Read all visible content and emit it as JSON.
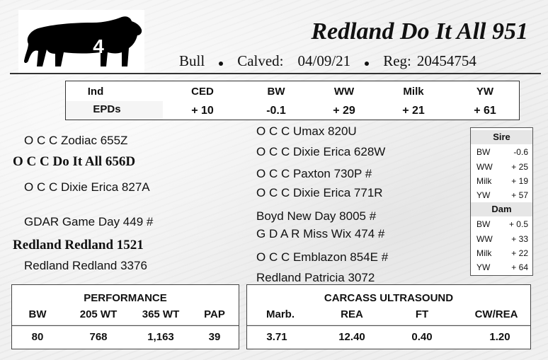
{
  "header": {
    "lot_number": "4",
    "animal_name": "Redland Do It All 951",
    "sex": "Bull",
    "calved_label": "Calved:",
    "calved_date": "04/09/21",
    "reg_label": "Reg:",
    "reg_number": "20454754",
    "logo_icon": "bull-silhouette-icon"
  },
  "epds": {
    "row_label_top": "Ind",
    "row_label_bottom": "EPDs",
    "columns": [
      {
        "label": "CED",
        "value": "+ 10"
      },
      {
        "label": "BW",
        "value": "-0.1"
      },
      {
        "label": "WW",
        "value": "+ 29"
      },
      {
        "label": "Milk",
        "value": "+ 21"
      },
      {
        "label": "YW",
        "value": "+ 61"
      }
    ]
  },
  "pedigree": {
    "sire": "O C C Do It All 656D",
    "sire_sire": "O C C Zodiac 655Z",
    "sire_dam": "O C C Dixie Erica 827A",
    "sire_sire_sire": "O C C Umax 820U",
    "sire_sire_dam": "O C C Dixie Erica 628W",
    "sire_dam_sire": "O C C Paxton 730P #",
    "sire_dam_dam": "O C C Dixie Erica 771R",
    "dam": "Redland Redland 1521",
    "dam_sire": "GDAR Game Day 449 #",
    "dam_dam": "Redland Redland 3376",
    "dam_sire_sire": "Boyd New Day 8005 #",
    "dam_sire_dam": "G D A R Miss Wix 474 #",
    "dam_dam_sire": "O C C Emblazon 854E #",
    "dam_dam_dam": "Redland Patricia 3072"
  },
  "parent_epds": {
    "sire_title": "Sire",
    "sire": [
      {
        "k": "BW",
        "v": "-0.6"
      },
      {
        "k": "WW",
        "v": "+ 25"
      },
      {
        "k": "Milk",
        "v": "+ 19"
      },
      {
        "k": "YW",
        "v": "+ 57"
      }
    ],
    "dam_title": "Dam",
    "dam": [
      {
        "k": "BW",
        "v": "+ 0.5"
      },
      {
        "k": "WW",
        "v": "+ 33"
      },
      {
        "k": "Milk",
        "v": "+ 22"
      },
      {
        "k": "YW",
        "v": "+ 64"
      }
    ]
  },
  "performance": {
    "title": "PERFORMANCE",
    "columns": [
      {
        "label": "BW",
        "value": "80"
      },
      {
        "label": "205 WT",
        "value": "768"
      },
      {
        "label": "365 WT",
        "value": "1,163"
      },
      {
        "label": "PAP",
        "value": "39"
      }
    ]
  },
  "carcass": {
    "title": "CARCASS ULTRASOUND",
    "columns": [
      {
        "label": "Marb.",
        "value": "3.71"
      },
      {
        "label": "REA",
        "value": "12.40"
      },
      {
        "label": "FT",
        "value": "0.40"
      },
      {
        "label": "CW/REA",
        "value": "1.20"
      }
    ]
  }
}
